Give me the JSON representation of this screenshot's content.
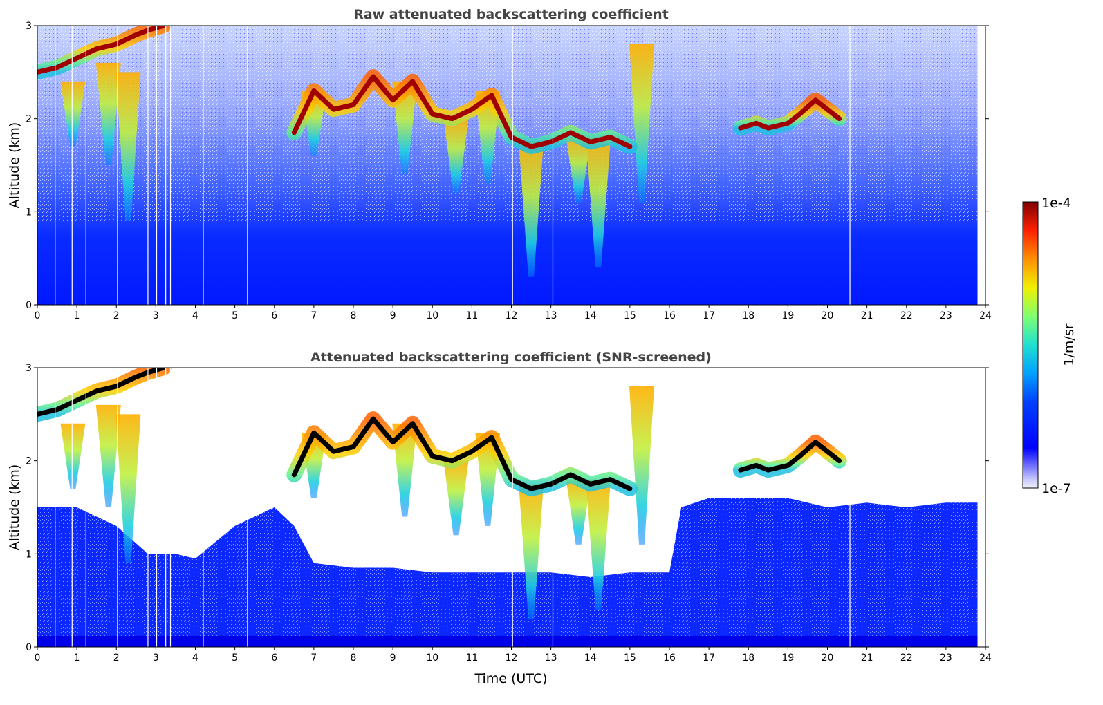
{
  "chart_data": [
    {
      "type": "heatmap",
      "title": "Raw attenuated backscattering coefficient",
      "xlabel": "",
      "ylabel": "Altitude (km)",
      "xlim": [
        0,
        24
      ],
      "ylim": [
        0,
        3
      ],
      "x_ticks": [
        "0",
        "1",
        "2",
        "3",
        "4",
        "5",
        "6",
        "7",
        "8",
        "9",
        "10",
        "11",
        "12",
        "13",
        "14",
        "15",
        "16",
        "17",
        "18",
        "19",
        "20",
        "21",
        "22",
        "23",
        "24"
      ],
      "y_ticks": [
        "0",
        "1",
        "2",
        "3"
      ],
      "data_end_hour": 23.8,
      "gap_times_utc": [
        0.45,
        0.88,
        1.23,
        2.03,
        2.8,
        3.02,
        3.25,
        3.37,
        4.2,
        5.32,
        12.03,
        13.05,
        20.57
      ],
      "layers": [
        {
          "name": "cloud",
          "x": [
            0.0,
            0.5,
            1.0,
            1.5,
            2.0,
            2.5,
            2.8,
            3.2
          ],
          "y": [
            2.5,
            2.55,
            2.65,
            2.75,
            2.8,
            2.9,
            2.95,
            3.0
          ]
        },
        {
          "name": "cloud",
          "x": [
            6.5,
            7.0,
            7.5,
            8.0,
            8.5,
            9.0,
            9.5,
            10.0,
            10.5,
            11.0,
            11.5,
            12.0,
            12.5,
            13.0,
            13.5,
            14.0,
            14.5,
            15.0
          ],
          "y": [
            1.85,
            2.3,
            2.1,
            2.15,
            2.45,
            2.2,
            2.4,
            2.05,
            2.0,
            2.1,
            2.25,
            1.8,
            1.7,
            1.75,
            1.85,
            1.75,
            1.8,
            1.7
          ]
        },
        {
          "name": "cloud",
          "x": [
            17.8,
            18.2,
            18.5,
            19.0,
            19.3,
            19.7,
            20.0,
            20.3
          ],
          "y": [
            1.9,
            1.95,
            1.9,
            1.95,
            2.05,
            2.2,
            2.1,
            2.0
          ]
        }
      ],
      "precip_fallstreaks": [
        {
          "x": 0.9,
          "top": 2.4,
          "bottom": 1.7
        },
        {
          "x": 1.8,
          "top": 2.6,
          "bottom": 1.5
        },
        {
          "x": 2.3,
          "top": 2.5,
          "bottom": 0.9
        },
        {
          "x": 7.0,
          "top": 2.3,
          "bottom": 1.6
        },
        {
          "x": 9.3,
          "top": 2.4,
          "bottom": 1.4
        },
        {
          "x": 10.6,
          "top": 2.0,
          "bottom": 1.2
        },
        {
          "x": 11.4,
          "top": 2.3,
          "bottom": 1.3
        },
        {
          "x": 12.5,
          "top": 1.75,
          "bottom": 0.3
        },
        {
          "x": 13.7,
          "top": 1.8,
          "bottom": 1.1
        },
        {
          "x": 14.2,
          "top": 1.8,
          "bottom": 0.4
        },
        {
          "x": 15.3,
          "top": 2.8,
          "bottom": 1.1
        }
      ],
      "colorbar": {
        "scale": "log",
        "min": "1e-7",
        "max": "1e-4",
        "label": "1/m/sr",
        "colormap": "jet"
      }
    },
    {
      "type": "heatmap",
      "title": "Attenuated backscattering coefficient (SNR-screened)",
      "xlabel": "Time (UTC)",
      "ylabel": "Altitude (km)",
      "xlim": [
        0,
        24
      ],
      "ylim": [
        0,
        3
      ],
      "x_ticks": [
        "0",
        "1",
        "2",
        "3",
        "4",
        "5",
        "6",
        "7",
        "8",
        "9",
        "10",
        "11",
        "12",
        "13",
        "14",
        "15",
        "16",
        "17",
        "18",
        "19",
        "20",
        "21",
        "22",
        "23",
        "24"
      ],
      "y_ticks": [
        "0",
        "1",
        "2",
        "3"
      ],
      "data_end_hour": 23.8,
      "gap_times_utc": [
        0.45,
        0.88,
        1.23,
        2.03,
        2.8,
        3.02,
        3.25,
        3.37,
        4.2,
        5.32,
        12.03,
        13.05,
        20.57
      ],
      "boundary_layer_top_km": [
        [
          0,
          1.5
        ],
        [
          1,
          1.5
        ],
        [
          2,
          1.3
        ],
        [
          2.8,
          1.0
        ],
        [
          3.5,
          1.0
        ],
        [
          4,
          0.95
        ],
        [
          5,
          1.3
        ],
        [
          6,
          1.5
        ],
        [
          6.5,
          1.3
        ],
        [
          7,
          0.9
        ],
        [
          8,
          0.85
        ],
        [
          9,
          0.85
        ],
        [
          10,
          0.8
        ],
        [
          11,
          0.8
        ],
        [
          12,
          0.8
        ],
        [
          13,
          0.8
        ],
        [
          14,
          0.75
        ],
        [
          15,
          0.8
        ],
        [
          16,
          0.8
        ],
        [
          16.3,
          1.5
        ],
        [
          17,
          1.6
        ],
        [
          18,
          1.6
        ],
        [
          19,
          1.6
        ],
        [
          20,
          1.5
        ],
        [
          21,
          1.55
        ],
        [
          22,
          1.5
        ],
        [
          23,
          1.55
        ],
        [
          23.8,
          1.55
        ]
      ],
      "colorbar": {
        "scale": "log",
        "min": "1e-7",
        "max": "1e-4",
        "label": "1/m/sr",
        "colormap": "jet"
      }
    }
  ],
  "colorbar": {
    "top_label": "1e-4",
    "bottom_label": "1e-7",
    "unit_label": "1/m/sr"
  }
}
